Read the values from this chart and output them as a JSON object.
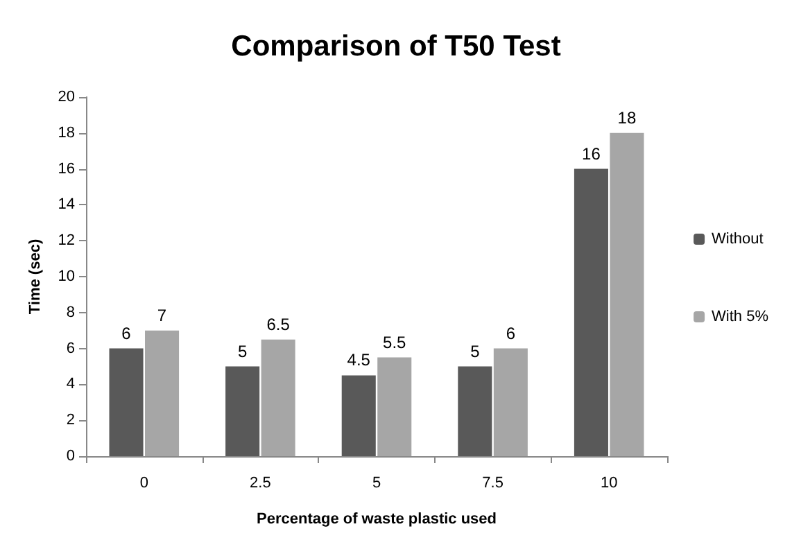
{
  "chart_data": {
    "type": "bar",
    "title": "Comparison of T50 Test",
    "xlabel": "Percentage of waste plastic used",
    "ylabel": "Time (sec)",
    "categories": [
      "0",
      "2.5",
      "5",
      "7.5",
      "10"
    ],
    "series": [
      {
        "name": "Without",
        "color": "#595959",
        "values": [
          6,
          5,
          4.5,
          5,
          16
        ]
      },
      {
        "name": "With 5%",
        "color": "#a6a6a6",
        "values": [
          7,
          6.5,
          5.5,
          6,
          18
        ]
      }
    ],
    "ylim": [
      0,
      20
    ],
    "yticks": [
      0,
      2,
      4,
      6,
      8,
      10,
      12,
      14,
      16,
      18,
      20
    ],
    "grid": false,
    "legend": "right",
    "data_labels": true
  }
}
